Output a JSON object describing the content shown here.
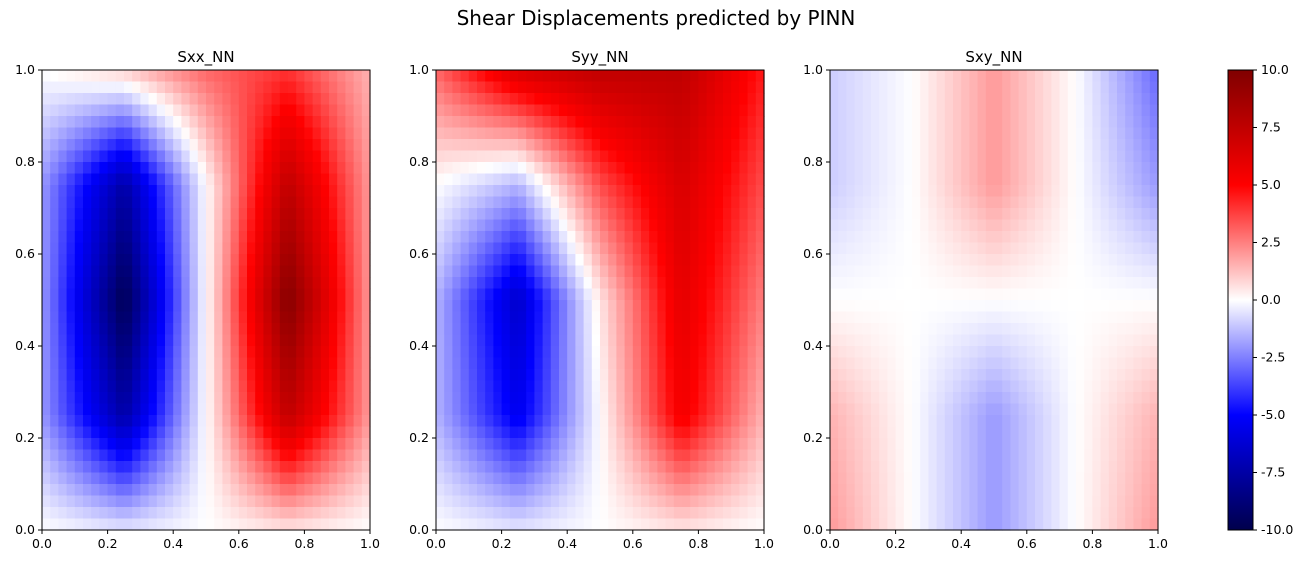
{
  "figure_title": "Shear Displacements predicted by PINN",
  "chart_data": [
    {
      "type": "heatmap",
      "title": "Sxx_NN",
      "x_ticks": [
        "0.0",
        "0.2",
        "0.4",
        "0.6",
        "0.8",
        "1.0"
      ],
      "y_ticks": [
        "0.0",
        "0.2",
        "0.4",
        "0.6",
        "0.8",
        "1.0"
      ],
      "xlim": [
        0,
        1
      ],
      "ylim": [
        0,
        1
      ],
      "x": [
        0.0,
        0.25,
        0.5,
        0.75,
        1.0
      ],
      "y": [
        0.0,
        0.25,
        0.5,
        0.75,
        1.0
      ],
      "z": [
        [
          0.0,
          -0.5,
          0.0,
          0.5,
          0.0
        ],
        [
          -2.0,
          -7.5,
          0.0,
          7.5,
          2.0
        ],
        [
          -2.0,
          -9.8,
          0.0,
          9.8,
          2.0
        ],
        [
          -2.0,
          -7.5,
          0.0,
          7.5,
          2.0
        ],
        [
          0.0,
          1.0,
          3.0,
          4.0,
          1.5
        ]
      ],
      "colormap": "seismic"
    },
    {
      "type": "heatmap",
      "title": "Syy_NN",
      "x_ticks": [
        "0.0",
        "0.2",
        "0.4",
        "0.6",
        "0.8",
        "1.0"
      ],
      "y_ticks": [
        "0.0",
        "0.2",
        "0.4",
        "0.6",
        "0.8",
        "1.0"
      ],
      "xlim": [
        0,
        1
      ],
      "ylim": [
        0,
        1
      ],
      "x": [
        0.0,
        0.25,
        0.5,
        0.75,
        1.0
      ],
      "y": [
        0.0,
        0.25,
        0.5,
        0.75,
        1.0
      ],
      "z": [
        [
          0.0,
          -0.5,
          0.0,
          0.5,
          0.0
        ],
        [
          -1.5,
          -5.5,
          0.0,
          5.5,
          1.5
        ],
        [
          -1.5,
          -6.5,
          0.5,
          6.0,
          2.5
        ],
        [
          0.0,
          -1.5,
          3.5,
          6.5,
          3.5
        ],
        [
          3.0,
          6.5,
          7.5,
          7.5,
          4.5
        ]
      ],
      "colormap": "seismic"
    },
    {
      "type": "heatmap",
      "title": "Sxy_NN",
      "x_ticks": [
        "0.0",
        "0.2",
        "0.4",
        "0.6",
        "0.8",
        "1.0"
      ],
      "y_ticks": [
        "0.0",
        "0.2",
        "0.4",
        "0.6",
        "0.8",
        "1.0"
      ],
      "xlim": [
        0,
        1
      ],
      "ylim": [
        0,
        1
      ],
      "x": [
        0.0,
        0.25,
        0.5,
        0.75,
        1.0
      ],
      "y": [
        0.0,
        0.25,
        0.5,
        0.75,
        1.0
      ],
      "z": [
        [
          2.0,
          0.0,
          -2.0,
          0.0,
          2.0
        ],
        [
          1.5,
          0.0,
          -2.0,
          0.0,
          1.5
        ],
        [
          0.0,
          0.0,
          0.0,
          0.0,
          0.0
        ],
        [
          -1.0,
          0.0,
          2.0,
          0.0,
          -2.0
        ],
        [
          -1.0,
          0.0,
          2.0,
          0.0,
          -3.0
        ]
      ],
      "colormap": "seismic"
    }
  ],
  "colorbar": {
    "vmin": -10,
    "vmax": 10,
    "ticks": [
      "-10.0",
      "-7.5",
      "-5.0",
      "-2.5",
      "0.0",
      "2.5",
      "5.0",
      "7.5",
      "10.0"
    ],
    "colors": {
      "dark_blue": "#00004c",
      "blue": "#0000ff",
      "white": "#ffffff",
      "red": "#ff0000",
      "dark_red": "#800000"
    }
  }
}
